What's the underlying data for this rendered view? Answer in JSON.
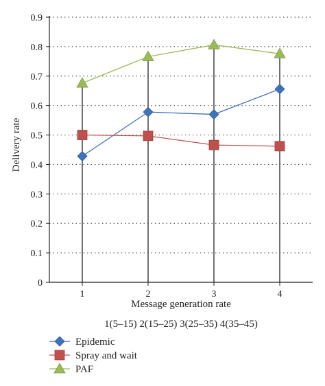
{
  "chart_data": {
    "type": "line",
    "x": [
      1,
      2,
      3,
      4
    ],
    "x_tick_labels": [
      "1",
      "2",
      "3",
      "4"
    ],
    "xlabel": "Message generation rate",
    "x_note": "1(5–15) 2(15–25) 3(25–35) 4(35–45)",
    "ylabel": "Delivery rate",
    "ylim": [
      0,
      0.9
    ],
    "y_ticks": [
      0,
      0.1,
      0.2,
      0.3,
      0.4,
      0.5,
      0.6,
      0.7,
      0.8,
      0.9
    ],
    "y_tick_labels": [
      "0",
      "0.1",
      "0.2",
      "0.3",
      "0.4",
      "0.5",
      "0.6",
      "0.7",
      "0.8",
      "0.9"
    ],
    "grid": "horizontal dotted",
    "legend_position": "bottom-left, below chart",
    "series": [
      {
        "name": "Epidemic",
        "values": [
          0.428,
          0.578,
          0.57,
          0.656
        ],
        "color": "#3f72b8",
        "marker": "diamond"
      },
      {
        "name": "Spray and wait",
        "values": [
          0.5,
          0.497,
          0.466,
          0.462
        ],
        "color": "#c0504d",
        "marker": "square"
      },
      {
        "name": "PAF",
        "values": [
          0.676,
          0.766,
          0.806,
          0.776
        ],
        "color": "#9bbb59",
        "marker": "triangle"
      }
    ]
  }
}
